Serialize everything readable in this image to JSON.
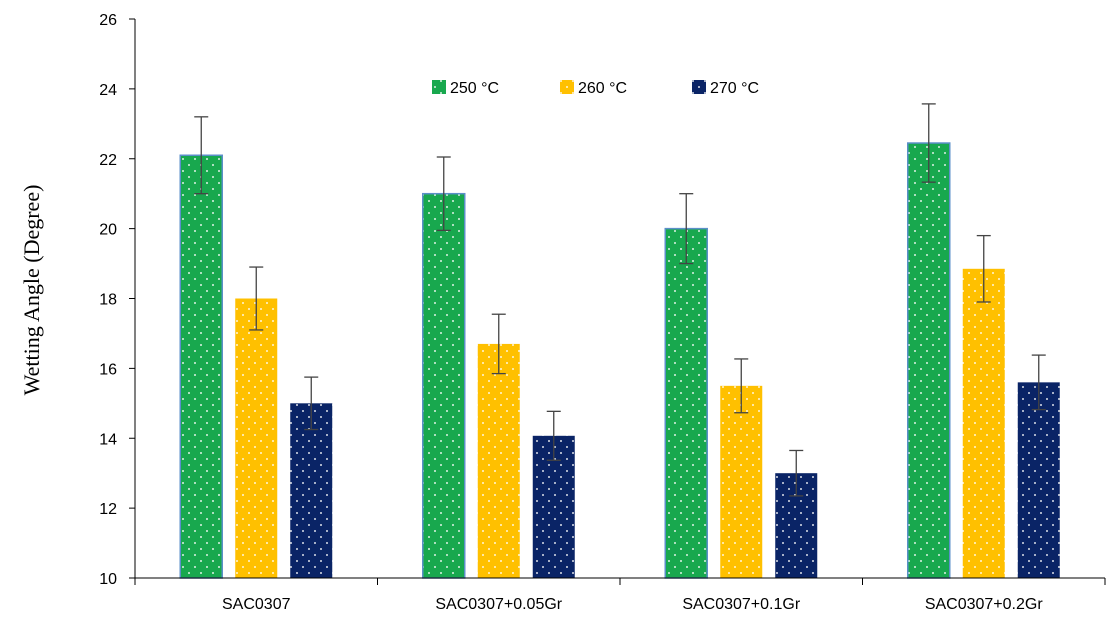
{
  "chart_data": {
    "type": "bar",
    "title": "",
    "xlabel": "",
    "ylabel": "Wetting Angle (Degree)",
    "categories": [
      "SAC0307",
      "SAC0307+0.05Gr",
      "SAC0307+0.1Gr",
      "SAC0307+0.2Gr"
    ],
    "ylim": [
      10,
      26
    ],
    "yticks": [
      "10",
      "12",
      "14",
      "16",
      "18",
      "20",
      "22",
      "24",
      "26"
    ],
    "grid": false,
    "legend_position": "top",
    "bar_pattern": "dotted",
    "series": [
      {
        "name": "250 °C",
        "color": "#18a84e",
        "values": [
          22.1,
          21.0,
          20.0,
          22.45
        ],
        "errors": [
          1.1,
          1.05,
          1.0,
          1.12
        ]
      },
      {
        "name": "260 °C",
        "color": "#ffc000",
        "values": [
          18.0,
          16.7,
          15.5,
          18.85
        ],
        "errors": [
          0.9,
          0.85,
          0.77,
          0.95
        ]
      },
      {
        "name": "270 °C",
        "color": "#0a2466",
        "values": [
          15.0,
          14.07,
          13.0,
          15.6
        ],
        "errors": [
          0.75,
          0.7,
          0.65,
          0.78
        ]
      }
    ]
  }
}
